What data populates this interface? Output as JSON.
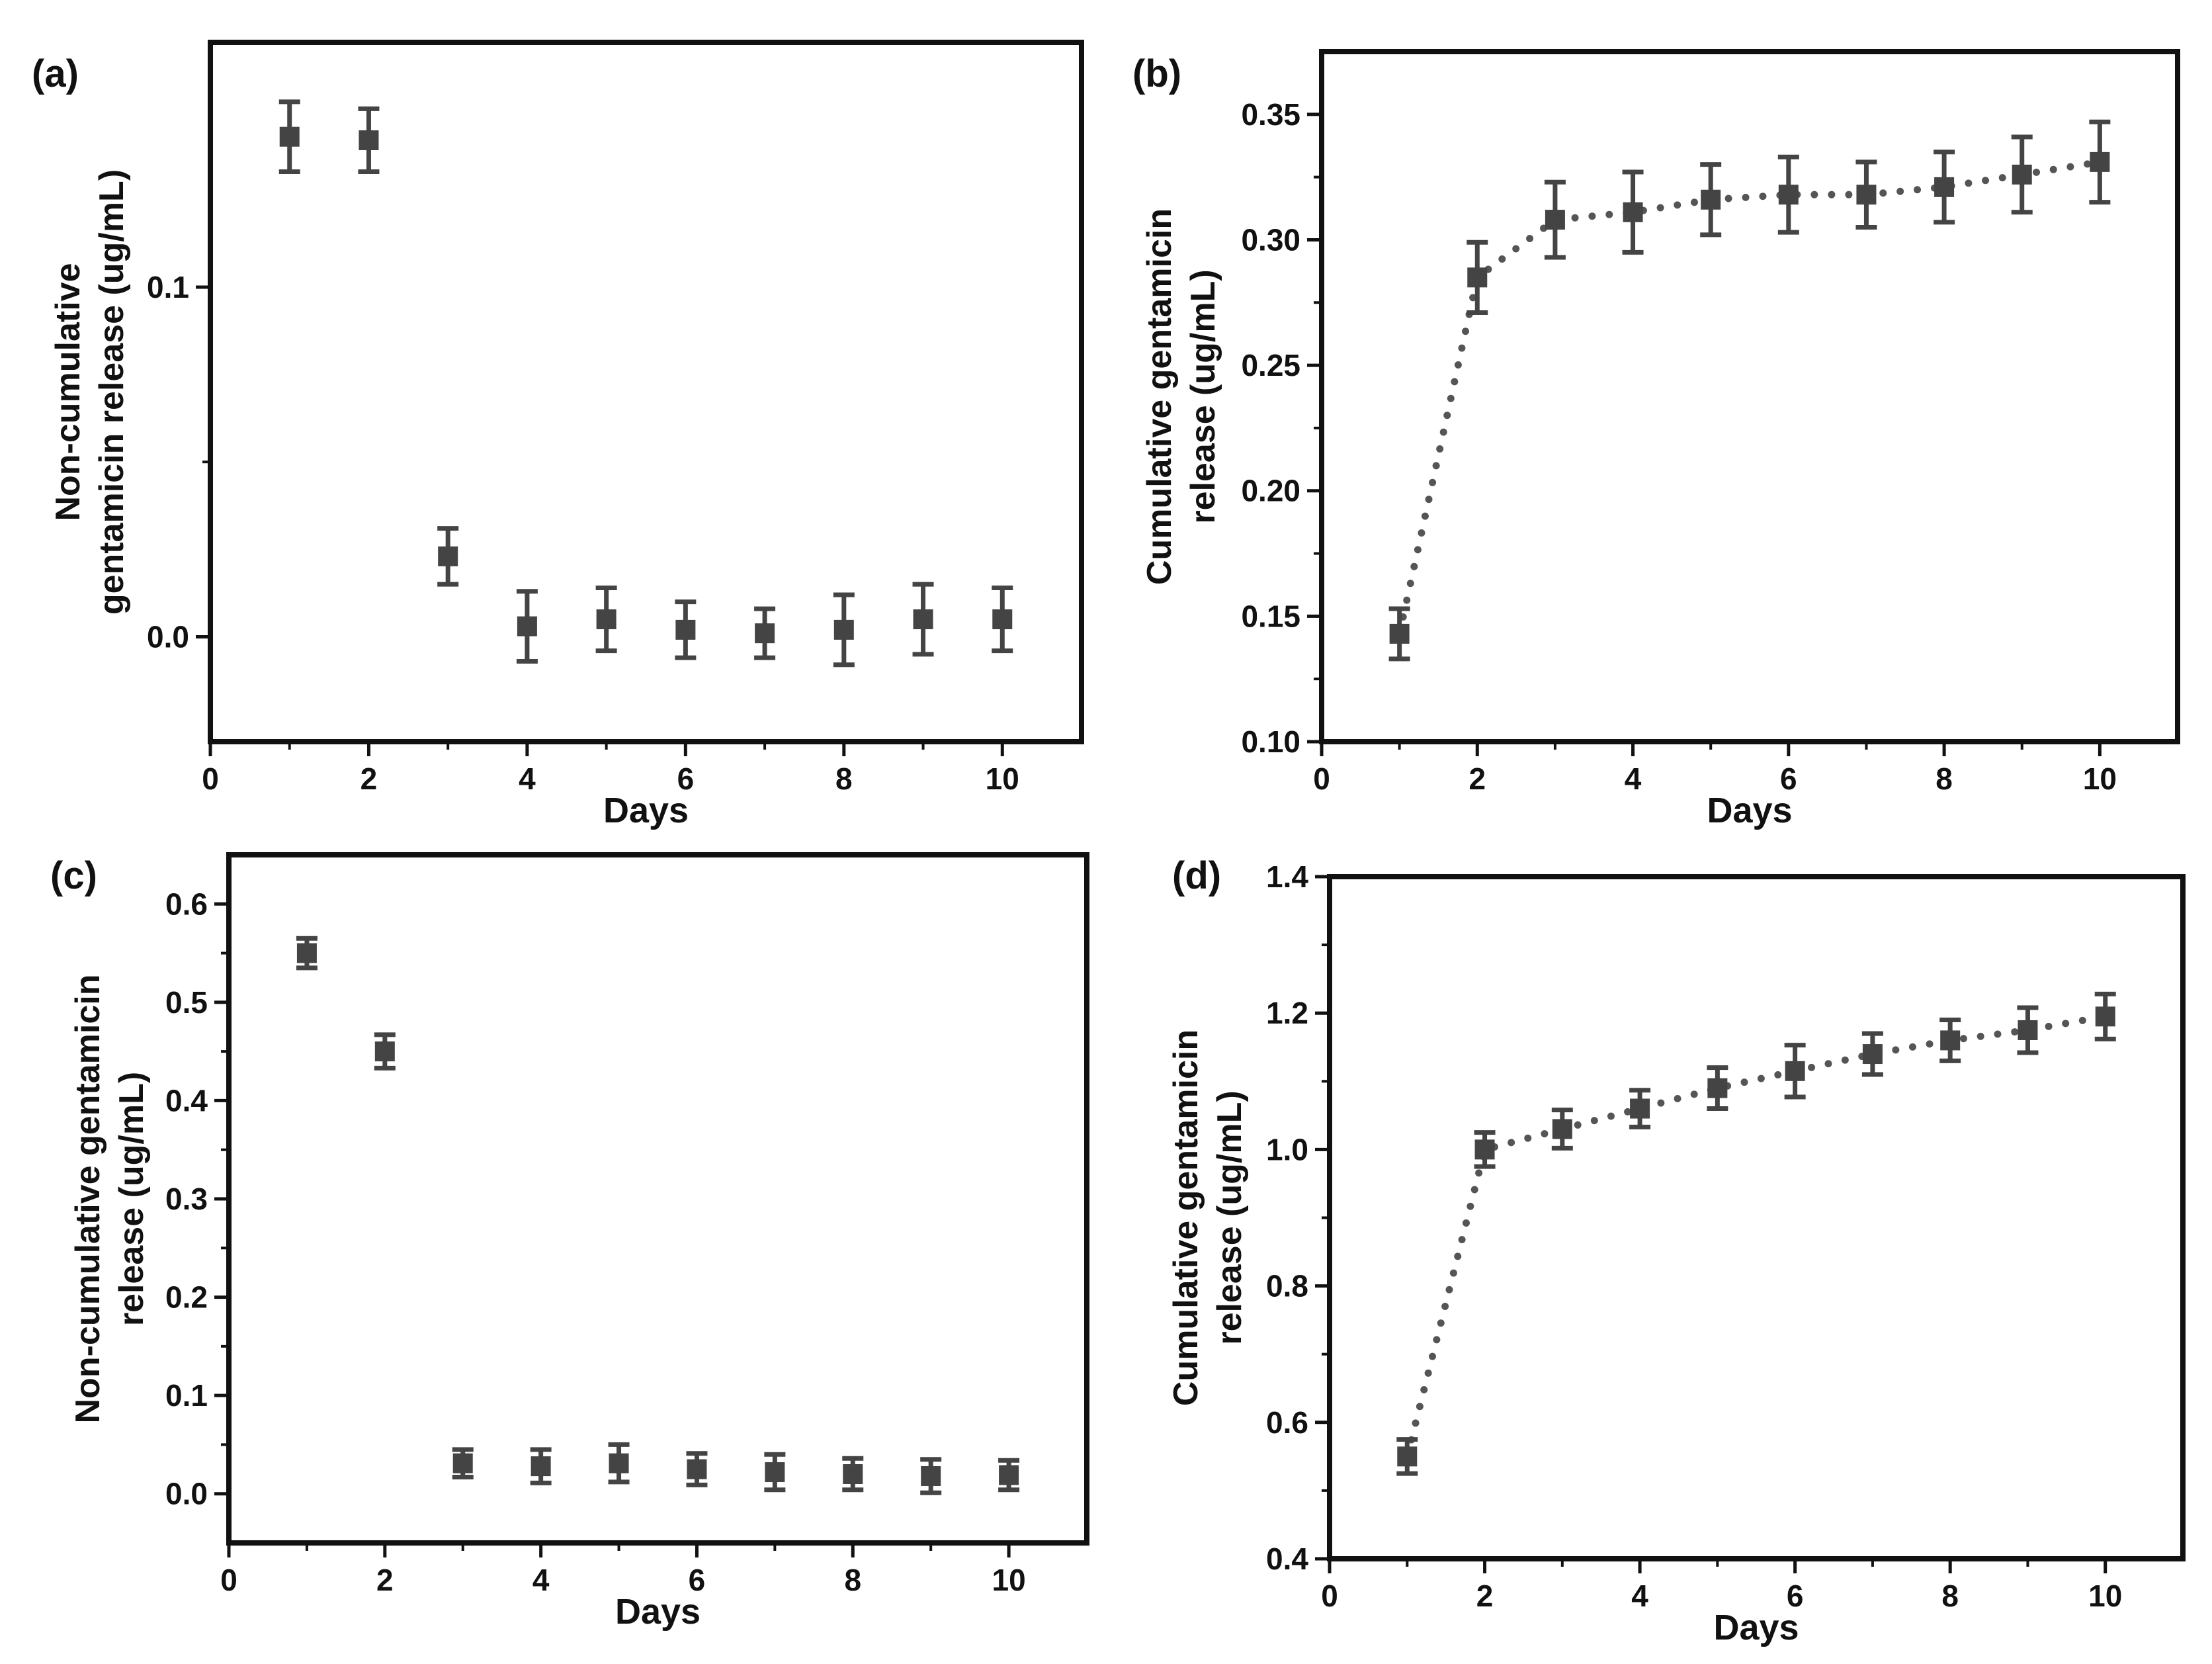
{
  "colors": {
    "marker": "#444444",
    "axis": "#111111",
    "line": "#555555"
  },
  "chart_data": [
    {
      "panel": "(a)",
      "type": "scatter",
      "connected": false,
      "title": "",
      "xlabel": "Days",
      "ylabel_lines": [
        "Non-cumulative",
        "gentamicin release (ug/mL)"
      ],
      "xlim": [
        0,
        11
      ],
      "ylim": [
        -0.03,
        0.17
      ],
      "xticks": [
        0,
        2,
        4,
        6,
        8,
        10
      ],
      "yticks": [
        0.0,
        0.1
      ],
      "ytick_labels": [
        "0.0",
        "0.1"
      ],
      "x": [
        1,
        2,
        3,
        4,
        5,
        6,
        7,
        8,
        9,
        10
      ],
      "y": [
        0.143,
        0.142,
        0.023,
        0.003,
        0.005,
        0.002,
        0.001,
        0.002,
        0.005,
        0.005
      ],
      "err": [
        0.01,
        0.009,
        0.008,
        0.01,
        0.009,
        0.008,
        0.007,
        0.01,
        0.01,
        0.009
      ]
    },
    {
      "panel": "(b)",
      "type": "line",
      "connected": true,
      "title": "",
      "xlabel": "Days",
      "ylabel_lines": [
        "Cumulative gentamicin",
        "release (ug/mL)"
      ],
      "xlim": [
        0,
        11
      ],
      "ylim": [
        0.1,
        0.375
      ],
      "xticks": [
        0,
        2,
        4,
        6,
        8,
        10
      ],
      "yticks": [
        0.1,
        0.15,
        0.2,
        0.25,
        0.3,
        0.35
      ],
      "ytick_labels": [
        "0.10",
        "0.15",
        "0.20",
        "0.25",
        "0.30",
        "0.35"
      ],
      "x": [
        1,
        2,
        3,
        4,
        5,
        6,
        7,
        8,
        9,
        10
      ],
      "y": [
        0.143,
        0.285,
        0.308,
        0.311,
        0.316,
        0.318,
        0.318,
        0.321,
        0.326,
        0.331
      ],
      "err": [
        0.01,
        0.014,
        0.015,
        0.016,
        0.014,
        0.015,
        0.013,
        0.014,
        0.015,
        0.016
      ]
    },
    {
      "panel": "(c)",
      "type": "scatter",
      "connected": false,
      "title": "",
      "xlabel": "Days",
      "ylabel_lines": [
        "Non-cumulative gentamicin",
        "release (ug/mL)"
      ],
      "xlim": [
        0,
        11
      ],
      "ylim": [
        -0.05,
        0.65
      ],
      "xticks": [
        0,
        2,
        4,
        6,
        8,
        10
      ],
      "yticks": [
        0.0,
        0.1,
        0.2,
        0.3,
        0.4,
        0.5,
        0.6
      ],
      "ytick_labels": [
        "0.0",
        "0.1",
        "0.2",
        "0.3",
        "0.4",
        "0.5",
        "0.6"
      ],
      "x": [
        1,
        2,
        3,
        4,
        5,
        6,
        7,
        8,
        9,
        10
      ],
      "y": [
        0.55,
        0.45,
        0.031,
        0.028,
        0.031,
        0.025,
        0.022,
        0.02,
        0.018,
        0.019
      ],
      "err": [
        0.015,
        0.017,
        0.014,
        0.017,
        0.019,
        0.016,
        0.018,
        0.016,
        0.017,
        0.015
      ]
    },
    {
      "panel": "(d)",
      "type": "line",
      "connected": true,
      "title": "",
      "xlabel": "Days",
      "ylabel_lines": [
        "Cumulative gentamicin",
        "release (ug/mL)"
      ],
      "xlim": [
        0,
        11
      ],
      "ylim": [
        0.4,
        1.4
      ],
      "xticks": [
        0,
        2,
        4,
        6,
        8,
        10
      ],
      "yticks": [
        0.4,
        0.6,
        0.8,
        1.0,
        1.2,
        1.4
      ],
      "ytick_labels": [
        "0.4",
        "0.6",
        "0.8",
        "1.0",
        "1.2",
        "1.4"
      ],
      "x": [
        1,
        2,
        3,
        4,
        5,
        6,
        7,
        8,
        9,
        10
      ],
      "y": [
        0.55,
        1.0,
        1.03,
        1.06,
        1.09,
        1.115,
        1.14,
        1.16,
        1.175,
        1.195
      ],
      "err": [
        0.025,
        0.025,
        0.028,
        0.027,
        0.03,
        0.038,
        0.03,
        0.03,
        0.033,
        0.033
      ]
    }
  ]
}
